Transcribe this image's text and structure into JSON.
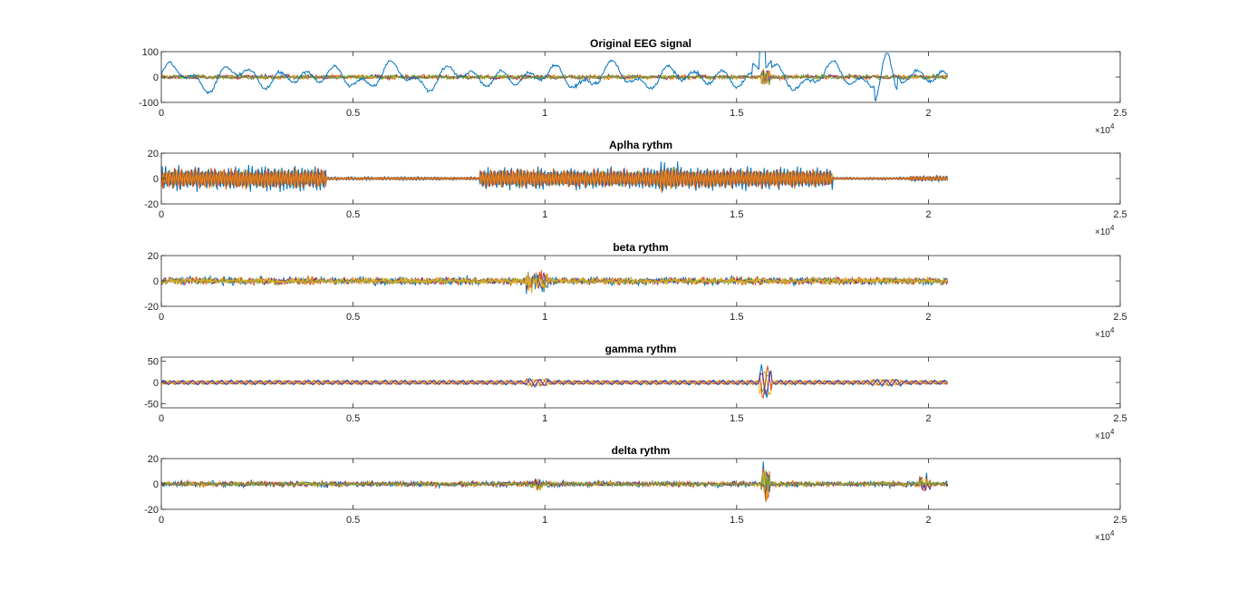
{
  "series_colors": [
    "#0072BD",
    "#D95319",
    "#EDB120",
    "#7E2F8E",
    "#77AC30",
    "#4DBEEE"
  ],
  "chart_data": [
    {
      "type": "line",
      "title": "Original EEG signal",
      "xlim": [
        0,
        25000
      ],
      "ylim": [
        -100,
        100
      ],
      "xticks": [
        0,
        5000,
        10000,
        15000,
        20000,
        25000
      ],
      "xtick_labels": [
        "0",
        "0.5",
        "1",
        "1.5",
        "2",
        "2.5"
      ],
      "x_exponent": "×10",
      "x_exponent_power": "4",
      "yticks": [
        -100,
        0,
        100
      ],
      "ytick_labels": [
        "-100",
        "0",
        "100"
      ],
      "x_end": 20500,
      "channels": 5,
      "dominant": "wave"
    },
    {
      "type": "line",
      "title": "Aplha rythm",
      "xlim": [
        0,
        25000
      ],
      "ylim": [
        -20,
        20
      ],
      "xticks": [
        0,
        5000,
        10000,
        15000,
        20000,
        25000
      ],
      "xtick_labels": [
        "0",
        "0.5",
        "1",
        "1.5",
        "2",
        "2.5"
      ],
      "x_exponent": "×10",
      "x_exponent_power": "4",
      "yticks": [
        -20,
        0,
        20
      ],
      "ytick_labels": [
        "-20",
        "0",
        "20"
      ],
      "x_end": 20500,
      "channels": 5,
      "dominant": "alpha"
    },
    {
      "type": "line",
      "title": "beta rythm",
      "xlim": [
        0,
        25000
      ],
      "ylim": [
        -20,
        20
      ],
      "xticks": [
        0,
        5000,
        10000,
        15000,
        20000,
        25000
      ],
      "xtick_labels": [
        "0",
        "0.5",
        "1",
        "1.5",
        "2",
        "2.5"
      ],
      "x_exponent": "×10",
      "x_exponent_power": "4",
      "yticks": [
        -20,
        0,
        20
      ],
      "ytick_labels": [
        "-20",
        "0",
        "20"
      ],
      "x_end": 20500,
      "channels": 5,
      "dominant": "beta"
    },
    {
      "type": "line",
      "title": "gamma rythm",
      "xlim": [
        0,
        25000
      ],
      "ylim": [
        -60,
        60
      ],
      "xticks": [
        0,
        5000,
        10000,
        15000,
        20000,
        25000
      ],
      "xtick_labels": [
        "0",
        "0.5",
        "1",
        "1.5",
        "2",
        "2.5"
      ],
      "x_exponent": "×10",
      "x_exponent_power": "4",
      "yticks": [
        -50,
        0,
        50
      ],
      "ytick_labels": [
        "-50",
        "0",
        "50"
      ],
      "x_end": 20500,
      "channels": 5,
      "dominant": "gamma"
    },
    {
      "type": "line",
      "title": "delta rythm",
      "xlim": [
        0,
        25000
      ],
      "ylim": [
        -20,
        20
      ],
      "xticks": [
        0,
        5000,
        10000,
        15000,
        20000,
        25000
      ],
      "xtick_labels": [
        "0",
        "0.5",
        "1",
        "1.5",
        "2",
        "2.5"
      ],
      "x_exponent": "×10",
      "x_exponent_power": "4",
      "yticks": [
        -20,
        0,
        20
      ],
      "ytick_labels": [
        "-20",
        "0",
        "20"
      ],
      "x_end": 20500,
      "channels": 5,
      "dominant": "delta"
    }
  ]
}
